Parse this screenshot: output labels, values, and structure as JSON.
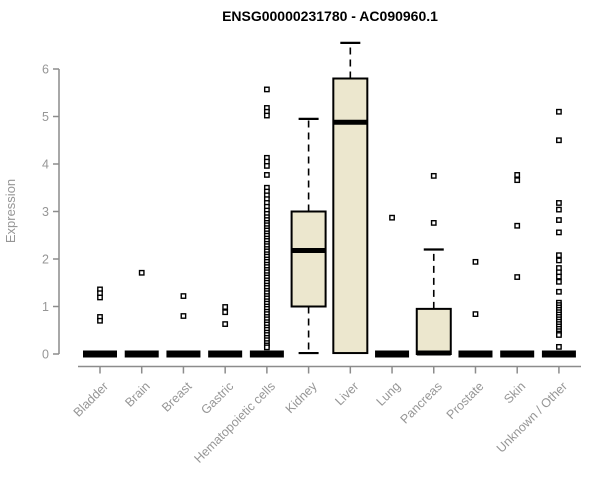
{
  "chart_data": {
    "type": "boxplot",
    "title": "ENSG00000231780 - AC090960.1",
    "ylabel": "Expression",
    "xlabel": "",
    "ylim": [
      0,
      6.6
    ],
    "yticks": [
      0,
      1,
      2,
      3,
      4,
      5,
      6
    ],
    "grid": false,
    "legend": null,
    "colors": {
      "box_fill": "#ece7ce",
      "box_stroke": "#000000",
      "axis": "#8c8c8c",
      "labels": "#969696",
      "title": "#000000",
      "outlier_fill": "#ffffff"
    },
    "categories": [
      "Bladder",
      "Brain",
      "Breast",
      "Gastric",
      "Hematopoietic cells",
      "Kidney",
      "Liver",
      "Lung",
      "Pancreas",
      "Prostate",
      "Skin",
      "Unknown / Other"
    ],
    "boxes": [
      {
        "label": "Bladder",
        "q1": 0,
        "median": 0,
        "q3": 0,
        "whisker_low": 0,
        "whisker_high": 0,
        "outliers": [
          1.36,
          1.28,
          1.19,
          0.78,
          0.7
        ]
      },
      {
        "label": "Brain",
        "q1": 0,
        "median": 0,
        "q3": 0,
        "whisker_low": 0,
        "whisker_high": 0,
        "outliers": [
          1.71
        ]
      },
      {
        "label": "Breast",
        "q1": 0,
        "median": 0,
        "q3": 0,
        "whisker_low": 0,
        "whisker_high": 0,
        "outliers": [
          1.22,
          0.8
        ]
      },
      {
        "label": "Gastric",
        "q1": 0,
        "median": 0,
        "q3": 0,
        "whisker_low": 0,
        "whisker_high": 0,
        "outliers": [
          0.99,
          0.88,
          0.63
        ]
      },
      {
        "label": "Hematopoietic cells",
        "q1": 0,
        "median": 0,
        "q3": 0,
        "whisker_low": 0,
        "whisker_high": 0,
        "outliers": [
          5.57,
          5.18,
          5.1,
          5.02,
          4.13,
          4.05,
          3.96,
          3.77,
          3.5,
          3.42,
          3.34,
          3.26,
          3.18,
          3.1,
          3.02,
          2.95,
          2.88,
          2.82,
          2.76,
          2.71,
          2.65,
          2.6,
          2.54,
          2.49,
          2.43,
          2.38,
          2.32,
          2.27,
          2.21,
          2.16,
          2.1,
          2.05,
          1.99,
          1.94,
          1.88,
          1.83,
          1.77,
          1.72,
          1.66,
          1.61,
          1.55,
          1.5,
          1.44,
          1.39,
          1.33,
          1.28,
          1.22,
          1.17,
          1.11,
          1.06,
          1.0,
          0.95,
          0.89,
          0.84,
          0.78,
          0.73,
          0.67,
          0.62,
          0.56,
          0.51,
          0.45,
          0.4,
          0.34,
          0.29,
          0.23,
          0.18,
          0.14
        ]
      },
      {
        "label": "Kidney",
        "q1": 1.0,
        "median": 2.18,
        "q3": 3.0,
        "whisker_low": 0.02,
        "whisker_high": 4.95,
        "outliers": []
      },
      {
        "label": "Liver",
        "q1": 0.02,
        "median": 4.88,
        "q3": 5.8,
        "whisker_low": 0.02,
        "whisker_high": 6.55,
        "outliers": []
      },
      {
        "label": "Lung",
        "q1": 0,
        "median": 0,
        "q3": 0,
        "whisker_low": 0,
        "whisker_high": 0,
        "outliers": [
          2.87
        ]
      },
      {
        "label": "Pancreas",
        "q1": 0.0,
        "median": 0.02,
        "q3": 0.95,
        "whisker_low": 0.0,
        "whisker_high": 2.2,
        "outliers": [
          3.75,
          2.76
        ]
      },
      {
        "label": "Prostate",
        "q1": 0,
        "median": 0,
        "q3": 0,
        "whisker_low": 0,
        "whisker_high": 0,
        "outliers": [
          1.94,
          0.84
        ]
      },
      {
        "label": "Skin",
        "q1": 0,
        "median": 0,
        "q3": 0,
        "whisker_low": 0,
        "whisker_high": 0,
        "outliers": [
          3.77,
          3.66,
          2.7,
          1.62
        ]
      },
      {
        "label": "Unknown / Other",
        "q1": 0,
        "median": 0,
        "q3": 0,
        "whisker_low": 0,
        "whisker_high": 0,
        "outliers": [
          5.1,
          4.5,
          3.18,
          3.04,
          2.82,
          2.56,
          2.08,
          1.97,
          1.81,
          1.72,
          1.63,
          1.52,
          1.31,
          1.08,
          1.03,
          0.98,
          0.93,
          0.88,
          0.83,
          0.78,
          0.73,
          0.68,
          0.63,
          0.58,
          0.53,
          0.48,
          0.43,
          0.4,
          0.15
        ]
      }
    ]
  }
}
